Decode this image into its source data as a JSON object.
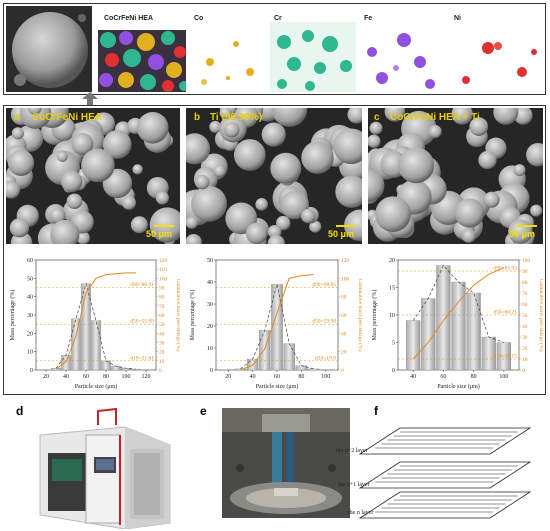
{
  "top_row": {
    "composite_label": "CoCrFeNi HEA",
    "element_maps": [
      {
        "label": "Co",
        "color": "#e0b020"
      },
      {
        "label": "Cr",
        "color": "#2fb890"
      },
      {
        "label": "Fe",
        "color": "#9050e0"
      },
      {
        "label": "Ni",
        "color": "#e03030"
      }
    ]
  },
  "sem_panels": [
    {
      "letter": "a",
      "title": "CoCrFeNi HEA",
      "scale": "50 μm"
    },
    {
      "letter": "b",
      "title": "Ti (99.99%)",
      "scale": "50 μm"
    },
    {
      "letter": "c",
      "title": "CoCrFeNi HEA + Ti",
      "scale": "50 μm"
    }
  ],
  "charts_common": {
    "xlabel": "Particle size (μm)",
    "ylabel_left": "Mass percentage (%)",
    "ylabel_right": "Cumulative mass percentage (%)"
  },
  "chart_data": [
    {
      "type": "bar",
      "x": [
        30,
        40,
        50,
        60,
        70,
        80,
        90,
        100,
        110
      ],
      "values": [
        1,
        8,
        28,
        47,
        27,
        5,
        2,
        1,
        0.5
      ],
      "ylim": [
        0,
        60
      ],
      "yticks": [
        0,
        10,
        20,
        30,
        40,
        50,
        60
      ],
      "xlim": [
        10,
        130
      ],
      "xticks": [
        20,
        40,
        60,
        80,
        100,
        120
      ],
      "y2lim": [
        0,
        120
      ],
      "y2ticks": [
        0,
        10,
        20,
        30,
        40,
        50,
        60,
        70,
        80,
        90,
        100,
        110,
        120
      ],
      "cumulative": [
        1,
        9,
        37,
        84,
        100,
        104,
        105,
        106,
        106
      ],
      "annotations": [
        "d90=86.91",
        "d50=55.09",
        "d10=21.61"
      ]
    },
    {
      "type": "bar",
      "x": [
        30,
        40,
        50,
        60,
        70,
        80,
        90
      ],
      "values": [
        0.5,
        5,
        18,
        39,
        12,
        2,
        0.5
      ],
      "ylim": [
        0,
        50
      ],
      "yticks": [
        0,
        10,
        20,
        30,
        40,
        50
      ],
      "xlim": [
        10,
        110
      ],
      "xticks": [
        20,
        40,
        60,
        80,
        100
      ],
      "y2lim": [
        0,
        120
      ],
      "y2ticks": [
        0,
        20,
        40,
        60,
        80,
        100,
        120
      ],
      "cumulative": [
        0.5,
        5,
        23,
        62,
        100,
        103,
        104
      ],
      "annotations": [
        "d90=98.85",
        "d50=59.98",
        "d10=18.8"
      ]
    },
    {
      "type": "bar",
      "x": [
        40,
        50,
        60,
        70,
        80,
        90,
        100
      ],
      "values": [
        9,
        13,
        19,
        16,
        14,
        6,
        5
      ],
      "ylim": [
        0,
        20
      ],
      "yticks": [
        0,
        5,
        10,
        15,
        20
      ],
      "xlim": [
        30,
        110
      ],
      "xticks": [
        40,
        60,
        80,
        100
      ],
      "y2lim": [
        0,
        100
      ],
      "y2ticks": [
        0,
        10,
        20,
        30,
        40,
        50,
        60,
        70,
        80,
        90,
        100
      ],
      "cumulative": [
        10,
        25,
        45,
        62,
        77,
        87,
        93
      ],
      "annotations": [
        "d90=83.03",
        "d50=60.21",
        "d10=35.15"
      ]
    }
  ],
  "bottom_row": {
    "d_letter": "d",
    "e_letter": "e",
    "f_letter": "f",
    "layers": [
      "the n+2 layer",
      "the n+1 layer",
      "the n layer"
    ]
  }
}
